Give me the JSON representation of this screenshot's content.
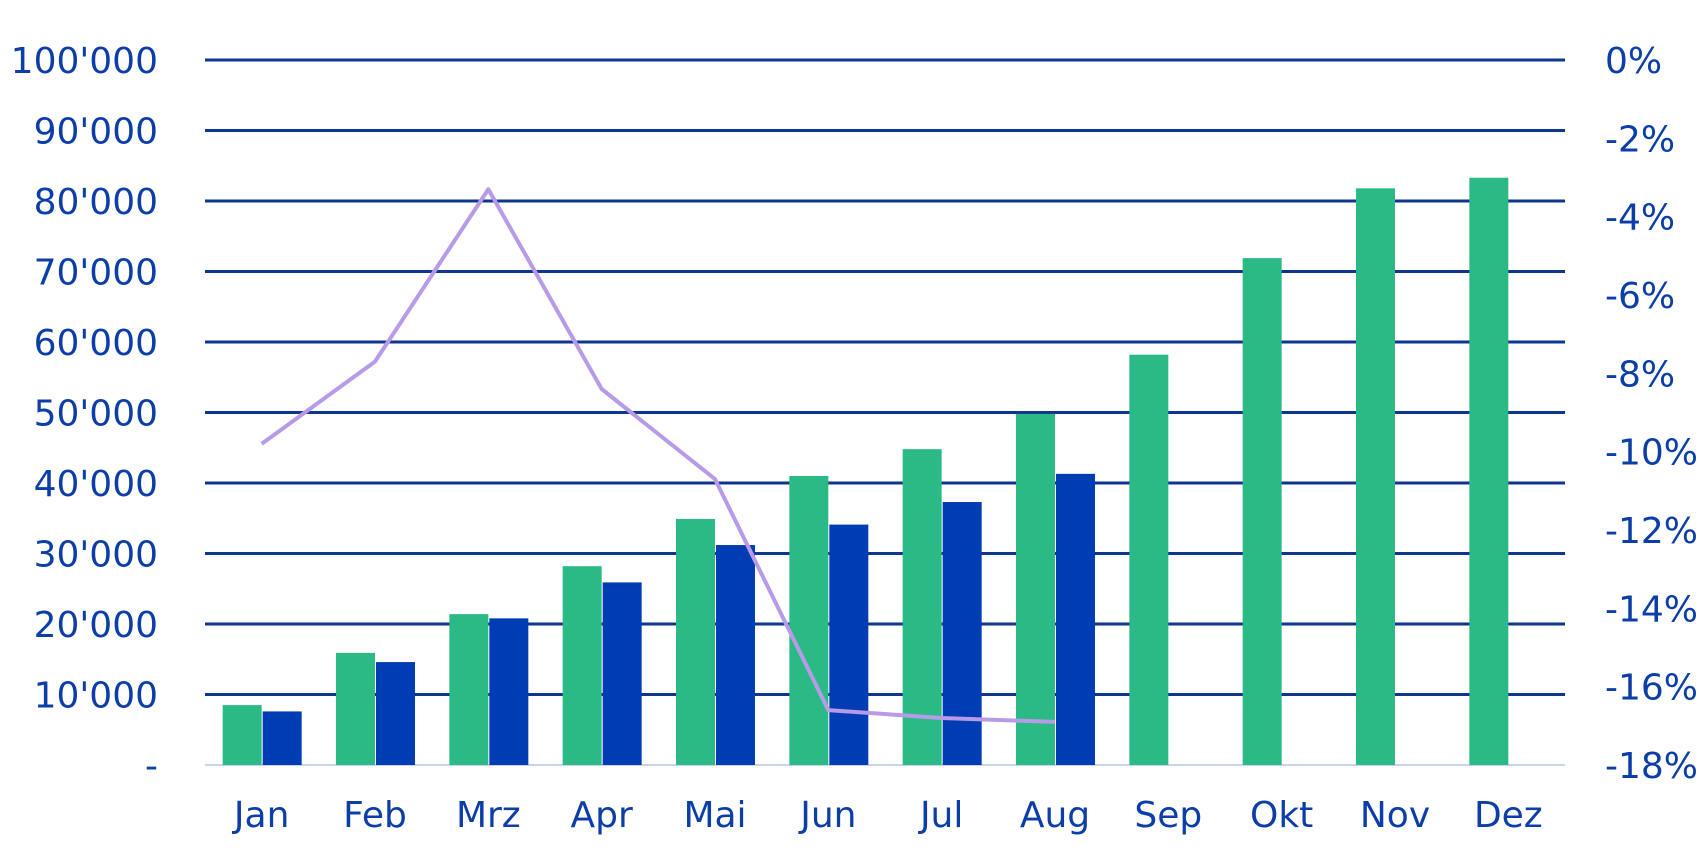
{
  "chart_data": {
    "type": "bar",
    "title": "",
    "xlabel": "",
    "ylabel": "",
    "categories": [
      "Jan",
      "Feb",
      "Mrz",
      "Apr",
      "Mai",
      "Jun",
      "Jul",
      "Aug",
      "Sep",
      "Okt",
      "Nov",
      "Dez"
    ],
    "series": [
      {
        "type": "bar",
        "axis": "left",
        "color": "#2bba85",
        "values": [
          8500,
          15900,
          21400,
          28200,
          34900,
          41000,
          44800,
          49800,
          58200,
          71900,
          81800,
          83300
        ]
      },
      {
        "type": "bar",
        "axis": "left",
        "color": "#003cb4",
        "values": [
          7600,
          14600,
          20800,
          25900,
          31200,
          34100,
          37300,
          41300,
          null,
          null,
          null,
          null
        ]
      },
      {
        "type": "line",
        "axis": "right",
        "color": "#b79be8",
        "values": [
          -9.8,
          -7.7,
          -3.3,
          -8.4,
          -10.7,
          -16.6,
          -16.8,
          -16.9,
          null,
          null,
          null,
          null
        ]
      }
    ],
    "ylim": [
      0,
      100000
    ],
    "yticks": [
      0,
      10000,
      20000,
      30000,
      40000,
      50000,
      60000,
      70000,
      80000,
      90000,
      100000
    ],
    "ytick_labels": [
      "-",
      "10'000",
      "20'000",
      "30'000",
      "40'000",
      "50'000",
      "60'000",
      "70'000",
      "80'000",
      "90'000",
      "100'000"
    ],
    "y2lim": [
      -18,
      0
    ],
    "y2ticks": [
      -18,
      -16,
      -14,
      -12,
      -10,
      -8,
      -6,
      -4,
      -2,
      0
    ],
    "y2tick_labels": [
      "-18%",
      "-16%",
      "-14%",
      "-12%",
      "-10%",
      "-8%",
      "-6%",
      "-4%",
      "-2%",
      "0%"
    ],
    "grid": true,
    "gridline_color": "#0e3590",
    "label_color": "#0b3ea8",
    "legend": "none"
  }
}
